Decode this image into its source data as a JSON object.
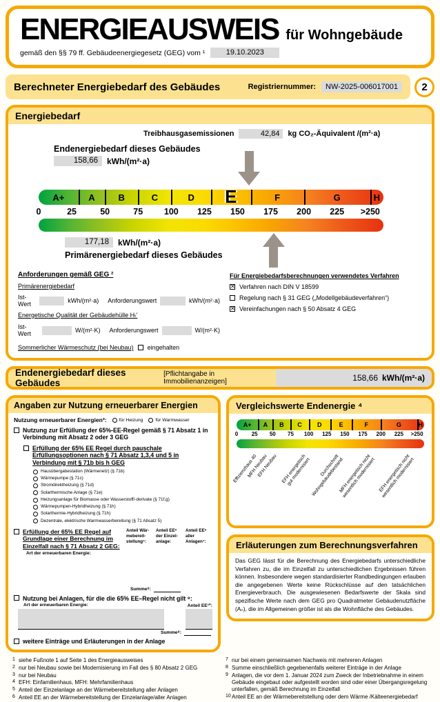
{
  "colors": {
    "accent_orange": "#F6A800",
    "strip_yellow": "#FCE290",
    "field_gray": "#DBDBDB",
    "arrow_gray": "#9B9289"
  },
  "header": {
    "title": "ENERGIEAUSWEIS",
    "subtitle": "für Wohngebäude",
    "law_line": "gemäß den §§ 79 ff. Gebäudeenergiegesetz (GEG) vom ¹",
    "date": "19.10.2023"
  },
  "calc_bar": {
    "title": "Berechneter Energiebedarf des Gebäudes",
    "reg_label": "Registriernummer:",
    "reg_value": "NW-2025-006017001",
    "page_badge": "2"
  },
  "energiebedarf": {
    "header": "Energiebedarf",
    "ghg_label": "Treibhausgasemissionen",
    "ghg_value": "42,84",
    "ghg_unit": "kg CO₂-Äquivalent /(m²·a)",
    "end_label": "Endenergiebedarf dieses Gebäudes",
    "end_value": "158,66",
    "end_unit": "kWh/(m²·a)",
    "prim_value": "177,18",
    "prim_unit": "kWh/(m²·a)",
    "prim_label": "Primärenergiebedarf dieses Gebäudes"
  },
  "anforderungen": {
    "title": "Anforderungen gemäß GEG ²",
    "prim_heading": "Primärenergiebedarf",
    "ist_label": "Ist-Wert",
    "anf_label": "Anforderungswert",
    "unit_kwh": "kWh/(m²·a)",
    "huelle_heading": "Energetische Qualität der Gebäudehülle Hₜ'",
    "unit_w": "W/(m²·K)",
    "sommer_heading": "Sommerlicher Wärmeschutz (bei Neubau)",
    "sommer_check": "eingehalten"
  },
  "verfahren": {
    "title": "Für Energiebedarfsberechnungen verwendetes Verfahren",
    "items": [
      {
        "checked": true,
        "label": "Verfahren nach DIN V 18599"
      },
      {
        "checked": false,
        "label": "Regelung nach § 31 GEG („Modellgebäudeverfahren“)"
      },
      {
        "checked": true,
        "label": "Vereinfachungen nach § 50 Absatz 4 GEG"
      }
    ]
  },
  "endbar": {
    "title": "Endenergiebedarf dieses Gebäudes",
    "note": "[Pflichtangabe in Immobilienanzeigen]",
    "value": "158,66",
    "unit": "kWh/(m²·a)"
  },
  "erneuerbare": {
    "header": "Angaben zur Nutzung erneuerbarer Energien",
    "intro_label": "Nutzung erneuerbarer Energien³:",
    "intro_options": [
      "für Heizung",
      "für Warmwasser"
    ],
    "cb1": "Nutzung zur Erfüllung der 65%-EE-Regel gemäß § 71 Absatz 1 in Verbindung mit Absatz 2 oder 3 GEG",
    "cb2": "Erfüllung der 65% EE Regel durch pauschale Erfüllungsoptionen nach § 71 Absatz 1,3,4 und 5 in Verbindung mit § 71b bis h GEG",
    "pauschal_options": [
      "Hausübergabestation (Wärmenetz) (§ 71b)",
      "Wärmepumpe (§ 71c)",
      "Stromdirektheizung (§ 71d)",
      "Solarthermische Anlage (§ 71e)",
      "Heizungsanlage für Biomasse oder Wasserstoff/-derivate (§ 71f,g)",
      "Wärmepumpen-Hybridheizung (§ 71h)",
      "Solarthermie-Hybridheizung (§ 71h)",
      "Dezentrale, elektrische Warmwasserbereitung (§ 71 Absatz 5)"
    ],
    "cb3": "Erfüllung der 65% EE Regel auf Grundlage einer Berechnung im Einzelfall nach § 71 Absatz 2 GEG:",
    "table": {
      "col_art": "Art der erneuerbaren Energie:",
      "col_waerme": "Anteil Wär-\nmebereit-\nstellung⁵:",
      "col_einzel": "Anteil EE⁶\nder Einzel-\nanlage:",
      "col_alle": "Anteil EE⁶\naller\nAnlagen⁷:",
      "summe_label": "Summe⁸:"
    },
    "cb4": "Nutzung bei Anlagen, für die die 65% EE–Regel nicht gilt ⁹:",
    "table2": {
      "col_art": "Art der erneuerbaren Energie:",
      "col_anteil": "Anteil EE¹⁰:",
      "summe_label": "Summe⁸:"
    },
    "cb5": "weitere Einträge und Erläuterungen in der Anlage"
  },
  "vergleich": {
    "header": "Vergleichswerte Endenergie ⁴"
  },
  "erlaeuterungen": {
    "header": "Erläuterungen zum Berechnungsverfahren",
    "text": "Das GEG lässt für die Berechnung des Energiebedarfs unterschiedliche Verfahren zu, die im Einzelfall zu unterschiedlichen Ergebnissen führen können. Insbesondere wegen standardisierter Randbedingungen erlauben die angegebenen Werte keine Rückschlüsse auf den tatsächlichen Energieverbrauch. Die ausgewiesenen Bedarfswerte der Skala sind spezifische Werte nach dem GEG pro Quadratmeter Gebäudenutzfläche (Aₙ), die im Allgemeinen größer ist als die Wohnfläche des Gebäudes."
  },
  "footnotes": {
    "left": [
      {
        "sup": "1",
        "text": "siehe Fußnote 1 auf Seite 1 des Energieausweises"
      },
      {
        "sup": "2",
        "text": "nur bei Neubau sowie bei Modernisierung im Fall des § 80 Absatz 2 GEG"
      },
      {
        "sup": "3",
        "text": "nur bei Neubau"
      },
      {
        "sup": "4",
        "text": "EFH: Einfamilienhaus, MFH: Mehrfamilienhaus"
      },
      {
        "sup": "5",
        "text": "Anteil der Einzelanlage an der Wärmebereitstellung aller Anlagen"
      },
      {
        "sup": "6",
        "text": "Anteil EE an der Wärmebereitstellung der Einzelanlage/aller Anlagen"
      }
    ],
    "right": [
      {
        "sup": "7",
        "text": "nur bei einem gemeinsamen Nachweis mit mehreren Anlagen"
      },
      {
        "sup": "8",
        "text": "Summe einschließlich gegebenenfalls weiterer Einträge in der Anlage"
      },
      {
        "sup": "9",
        "text": "Anlagen, die vor dem 1. Januar 2024 zum Zweck der Inbetriebnahme in einem Gebäude eingebaut oder aufgestellt worden sind oder einer Übergangsregelung unterfallen, gemäß Berechnung im Einzelfall"
      },
      {
        "sup": "10",
        "text": "Anteil EE an der Wärmebereitstellung oder dem Wärme /Kälteenergiebedarf"
      }
    ]
  },
  "chart_data": [
    {
      "type": "scale",
      "title": "Energiebedarf",
      "range": [
        0,
        260
      ],
      "classes": [
        {
          "label": "A+",
          "from": 0,
          "to": 30
        },
        {
          "label": "A",
          "from": 30,
          "to": 50
        },
        {
          "label": "B",
          "from": 50,
          "to": 75
        },
        {
          "label": "C",
          "from": 75,
          "to": 100
        },
        {
          "label": "D",
          "from": 100,
          "to": 130
        },
        {
          "label": "E",
          "from": 130,
          "to": 160
        },
        {
          "label": "F",
          "from": 160,
          "to": 200
        },
        {
          "label": "G",
          "from": 200,
          "to": 250
        },
        {
          "label": "H",
          "from": 250,
          "to": 260
        }
      ],
      "highlight_class": "E",
      "ticks": [
        {
          "label": "0",
          "value": 0
        },
        {
          "label": "25",
          "value": 25
        },
        {
          "label": "50",
          "value": 50
        },
        {
          "label": "75",
          "value": 75
        },
        {
          "label": "100",
          "value": 100
        },
        {
          "label": "125",
          "value": 125
        },
        {
          "label": "150",
          "value": 150
        },
        {
          "label": "175",
          "value": 175
        },
        {
          "label": "200",
          "value": 200
        },
        {
          "label": "225",
          "value": 225
        },
        {
          "label": ">250",
          "value": 250
        }
      ],
      "markers": [
        {
          "name": "Endenergiebedarf",
          "value": 158.66,
          "unit": "kWh/(m²·a)",
          "arrow": "down"
        },
        {
          "name": "Primärenergiebedarf",
          "value": 177.18,
          "unit": "kWh/(m²·a)",
          "arrow": "up"
        }
      ]
    },
    {
      "type": "scale",
      "title": "Vergleichswerte Endenergie",
      "range": [
        0,
        260
      ],
      "classes": [
        {
          "label": "A+",
          "from": 0,
          "to": 30
        },
        {
          "label": "A",
          "from": 30,
          "to": 50
        },
        {
          "label": "B",
          "from": 50,
          "to": 75
        },
        {
          "label": "C",
          "from": 75,
          "to": 100
        },
        {
          "label": "D",
          "from": 100,
          "to": 130
        },
        {
          "label": "E",
          "from": 130,
          "to": 160
        },
        {
          "label": "F",
          "from": 160,
          "to": 200
        },
        {
          "label": "G",
          "from": 200,
          "to": 250
        },
        {
          "label": "H",
          "from": 250,
          "to": 260
        }
      ],
      "ticks": [
        {
          "label": "0",
          "value": 0
        },
        {
          "label": "25",
          "value": 25
        },
        {
          "label": "50",
          "value": 50
        },
        {
          "label": "75",
          "value": 75
        },
        {
          "label": "100",
          "value": 100
        },
        {
          "label": "125",
          "value": 125
        },
        {
          "label": "150",
          "value": 150
        },
        {
          "label": "175",
          "value": 175
        },
        {
          "label": "200",
          "value": 200
        },
        {
          "label": "225",
          "value": 225
        },
        {
          "label": ">250",
          "value": 250
        }
      ],
      "annotations": [
        {
          "value": 24,
          "text": "Effizienzhaus 40"
        },
        {
          "value": 38,
          "text": "MFH Neubau"
        },
        {
          "value": 52,
          "text": "EFH Neubau"
        },
        {
          "value": 92,
          "text": "EFH energetisch\ngut modernisiert"
        },
        {
          "value": 138,
          "text": "Durchschnitt\nWohngebäudebestand"
        },
        {
          "value": 182,
          "text": "MFH energetisch nicht\nwesentlich modernisiert"
        },
        {
          "value": 236,
          "text": "EFH energetisch nicht\nwesentlich modernisiert"
        }
      ]
    }
  ]
}
